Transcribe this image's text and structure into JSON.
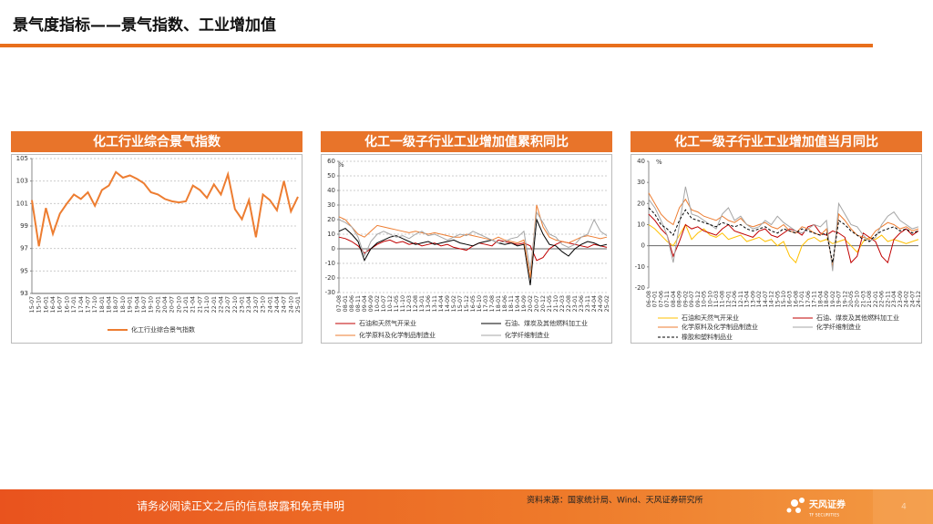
{
  "header": {
    "title": "景气度指标——景气指数、工业增加值"
  },
  "footer": {
    "disclaimer": "请务必阅读正文之后的信息披露和免责申明",
    "source": "资料来源：国家统计局、Wind、天风证券研究所",
    "logo": "天风证券",
    "logo_en": "TF SECURITIES",
    "page": "4"
  },
  "chart_data": [
    {
      "type": "line",
      "title": "化工行业综合景气指数",
      "categories": [
        "15-07",
        "15-10",
        "16-01",
        "16-04",
        "16-07",
        "16-10",
        "17-01",
        "17-04",
        "17-07",
        "17-10",
        "18-01",
        "18-04",
        "18-07",
        "18-10",
        "19-01",
        "19-04",
        "19-07",
        "19-10",
        "20-01",
        "20-04",
        "20-07",
        "20-10",
        "21-01",
        "21-04",
        "21-07",
        "21-10",
        "22-01",
        "22-04",
        "22-07",
        "22-10",
        "23-01",
        "23-04",
        "23-07",
        "23-10",
        "24-01",
        "24-04",
        "24-07",
        "24-10",
        "25-01"
      ],
      "series": [
        {
          "name": "化工行业综合景气指数",
          "color": "#ed7d31",
          "values": [
            101.3,
            97.2,
            100.6,
            98.3,
            100.1,
            101.0,
            101.8,
            101.4,
            102.0,
            100.8,
            102.2,
            102.6,
            103.8,
            103.3,
            103.5,
            103.2,
            102.8,
            102.0,
            101.8,
            101.4,
            101.2,
            101.1,
            101.2,
            102.6,
            102.2,
            101.5,
            102.7,
            101.8,
            103.6,
            100.5,
            99.6,
            101.3,
            98.0,
            101.8,
            101.3,
            100.4,
            103.0,
            100.3,
            101.6
          ]
        }
      ],
      "ylim": [
        93,
        105
      ],
      "yticks": [
        93,
        95,
        97,
        99,
        101,
        103,
        105
      ],
      "grid": true
    },
    {
      "type": "line",
      "title": "化工一级子行业工业增加值累积同比",
      "y_label": "%",
      "categories": [
        "07-08",
        "08-01",
        "08-06",
        "08-11",
        "09-04",
        "09-09",
        "10-02",
        "10-07",
        "10-12",
        "11-05",
        "11-10",
        "12-03",
        "12-08",
        "13-01",
        "13-06",
        "13-11",
        "14-04",
        "14-09",
        "15-02",
        "15-07",
        "15-12",
        "16-05",
        "16-10",
        "17-03",
        "17-08",
        "18-01",
        "18-06",
        "18-11",
        "19-04",
        "19-09",
        "20-02",
        "20-07",
        "20-12",
        "21-05",
        "21-10",
        "22-03",
        "22-08",
        "23-01",
        "23-06",
        "23-11",
        "24-04",
        "24-09",
        "25-02"
      ],
      "series": [
        {
          "name": "石油和天然气开采业",
          "color": "#c00000",
          "values": [
            8,
            7,
            5,
            2,
            -3,
            0,
            3,
            5,
            6,
            4,
            5,
            3,
            4,
            2,
            3,
            4,
            2,
            3,
            1,
            0,
            -1,
            2,
            4,
            3,
            2,
            6,
            5,
            4,
            3,
            4,
            2,
            -8,
            -6,
            0,
            3,
            5,
            4,
            3,
            2,
            1,
            3,
            2,
            1
          ]
        },
        {
          "name": "石油、煤炭及其他燃料加工业",
          "color": "#000000",
          "values": [
            12,
            14,
            10,
            5,
            -8,
            0,
            4,
            6,
            8,
            9,
            7,
            5,
            3,
            4,
            5,
            3,
            4,
            5,
            6,
            4,
            3,
            2,
            4,
            5,
            6,
            4,
            3,
            4,
            2,
            3,
            -25,
            20,
            10,
            3,
            2,
            -2,
            -5,
            0,
            3,
            5,
            4,
            2,
            3
          ]
        },
        {
          "name": "化学原料及化学制品制造业",
          "color": "#ed7d31",
          "values": [
            22,
            20,
            15,
            10,
            8,
            12,
            16,
            15,
            14,
            13,
            12,
            11,
            12,
            11,
            10,
            11,
            10,
            9,
            8,
            8,
            10,
            9,
            8,
            7,
            6,
            8,
            6,
            5,
            4,
            6,
            -20,
            30,
            15,
            8,
            6,
            5,
            4,
            6,
            8,
            9,
            8,
            7,
            8
          ]
        },
        {
          "name": "化学纤维制造业",
          "color": "#a5a5a5",
          "values": [
            20,
            18,
            15,
            8,
            -5,
            5,
            10,
            12,
            10,
            8,
            9,
            7,
            10,
            12,
            9,
            10,
            8,
            6,
            8,
            10,
            9,
            12,
            10,
            8,
            6,
            4,
            5,
            7,
            8,
            12,
            -15,
            25,
            18,
            10,
            8,
            3,
            1,
            3,
            8,
            10,
            20,
            12,
            9
          ]
        }
      ],
      "ylim": [
        -30,
        60
      ],
      "yticks": [
        -30,
        -20,
        -10,
        0,
        10,
        20,
        30,
        40,
        50,
        60
      ],
      "grid": true
    },
    {
      "type": "line",
      "title": "化工一级子行业工业增加值当月同比",
      "y_label": "%",
      "categories": [
        "06-08",
        "07-01",
        "07-06",
        "07-11",
        "08-04",
        "08-09",
        "09-02",
        "09-07",
        "09-12",
        "10-05",
        "10-10",
        "11-03",
        "11-08",
        "12-01",
        "12-06",
        "12-11",
        "13-04",
        "13-09",
        "14-02",
        "14-07",
        "14-12",
        "15-05",
        "15-10",
        "16-03",
        "16-08",
        "17-01",
        "17-06",
        "17-11",
        "18-04",
        "18-09",
        "19-02",
        "19-07",
        "19-12",
        "20-05",
        "20-10",
        "21-03",
        "21-08",
        "22-01",
        "22-06",
        "22-11",
        "23-04",
        "23-09",
        "24-02",
        "24-07",
        "24-12"
      ],
      "series": [
        {
          "name": "石油和天然气开采业",
          "color": "#ffc000",
          "values": [
            10,
            8,
            5,
            2,
            0,
            5,
            10,
            3,
            6,
            8,
            5,
            4,
            6,
            3,
            4,
            5,
            2,
            3,
            4,
            2,
            3,
            0,
            2,
            -5,
            -8,
            0,
            3,
            4,
            2,
            3,
            1,
            2,
            3,
            0,
            -3,
            2,
            4,
            3,
            5,
            2,
            3,
            2,
            1,
            2,
            3
          ]
        },
        {
          "name": "石油、煤炭及其他燃料加工业",
          "color": "#c00000",
          "values": [
            15,
            12,
            8,
            5,
            -5,
            2,
            10,
            8,
            9,
            7,
            6,
            5,
            8,
            10,
            7,
            6,
            5,
            4,
            7,
            8,
            5,
            4,
            6,
            8,
            7,
            5,
            9,
            10,
            6,
            5,
            7,
            6,
            4,
            -8,
            -5,
            6,
            4,
            2,
            -5,
            -8,
            3,
            6,
            8,
            5,
            7
          ]
        },
        {
          "name": "化学原料及化学制品制造业",
          "color": "#ed7d31",
          "values": [
            25,
            20,
            15,
            12,
            10,
            18,
            22,
            17,
            16,
            14,
            13,
            12,
            14,
            12,
            11,
            13,
            10,
            9,
            10,
            11,
            9,
            8,
            10,
            7,
            6,
            9,
            8,
            6,
            5,
            8,
            -10,
            15,
            12,
            8,
            5,
            4,
            3,
            7,
            9,
            11,
            10,
            8,
            9,
            7,
            8
          ]
        },
        {
          "name": "化学纤维制造业",
          "color": "#a5a5a5",
          "values": [
            22,
            18,
            12,
            5,
            -8,
            10,
            28,
            15,
            14,
            12,
            10,
            8,
            15,
            18,
            12,
            14,
            10,
            8,
            9,
            12,
            10,
            14,
            11,
            9,
            7,
            6,
            8,
            10,
            9,
            12,
            -12,
            20,
            15,
            10,
            9,
            5,
            2,
            4,
            10,
            14,
            16,
            12,
            10,
            8,
            9
          ]
        },
        {
          "name": "橡胶和塑料制品业",
          "color": "#000000",
          "style": "dashed",
          "values": [
            18,
            15,
            10,
            8,
            5,
            12,
            17,
            13,
            12,
            11,
            10,
            9,
            11,
            10,
            9,
            10,
            8,
            7,
            8,
            9,
            7,
            6,
            8,
            7,
            6,
            8,
            7,
            6,
            5,
            6,
            -8,
            12,
            10,
            7,
            5,
            3,
            2,
            5,
            7,
            8,
            9,
            7,
            8,
            6,
            7
          ]
        }
      ],
      "ylim": [
        -20,
        40
      ],
      "yticks": [
        -20,
        -10,
        0,
        10,
        20,
        30,
        40
      ],
      "grid": false
    }
  ]
}
